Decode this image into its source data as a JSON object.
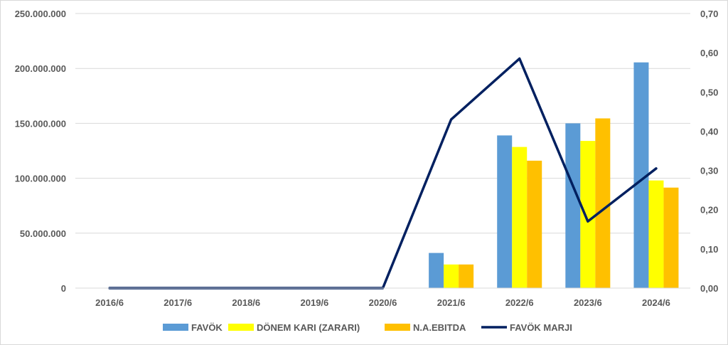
{
  "chart_data": {
    "type": "bar",
    "categories": [
      "2016/6",
      "2017/6",
      "2018/6",
      "2019/6",
      "2020/6",
      "2021/6",
      "2022/6",
      "2023/6",
      "2024/6"
    ],
    "series": [
      {
        "name": "FAVÖK",
        "kind": "bar",
        "axis": "left",
        "color": "#5b9bd5",
        "values": [
          0,
          0,
          0,
          0,
          0,
          32000000,
          139000000,
          150000000,
          205500000
        ]
      },
      {
        "name": "DÖNEM KARI (ZARARI)",
        "kind": "bar",
        "axis": "left",
        "color": "#ffff00",
        "values": [
          0,
          0,
          0,
          0,
          0,
          21500000,
          128500000,
          134000000,
          98000000
        ]
      },
      {
        "name": "N.A.EBITDA",
        "kind": "bar",
        "axis": "left",
        "color": "#ffc000",
        "values": [
          0,
          0,
          0,
          0,
          0,
          21500000,
          116000000,
          154500000,
          91500000
        ]
      },
      {
        "name": "FAVÖK MARJI",
        "kind": "line",
        "axis": "right",
        "color": "#002060",
        "values": [
          0,
          0,
          0,
          0,
          0,
          0.43,
          0.585,
          0.17,
          0.305
        ]
      }
    ],
    "left_axis": {
      "ylim": [
        0,
        250000000
      ],
      "ticks": [
        0,
        50000000,
        100000000,
        150000000,
        200000000,
        250000000
      ],
      "tick_labels": [
        "0",
        "50.000.000",
        "100.000.000",
        "150.000.000",
        "200.000.000",
        "250.000.000"
      ]
    },
    "right_axis": {
      "ylim": [
        0,
        0.7
      ],
      "ticks": [
        0,
        0.1,
        0.2,
        0.3,
        0.4,
        0.5,
        0.6,
        0.7
      ],
      "tick_labels": [
        "0,00",
        "0,10",
        "0,20",
        "0,30",
        "0,40",
        "0,50",
        "0,60",
        "0,70"
      ]
    },
    "grid": true,
    "gridline_color": "#d9d9d9",
    "legend_position": "bottom",
    "title": "",
    "xlabel": "",
    "ylabel": ""
  }
}
